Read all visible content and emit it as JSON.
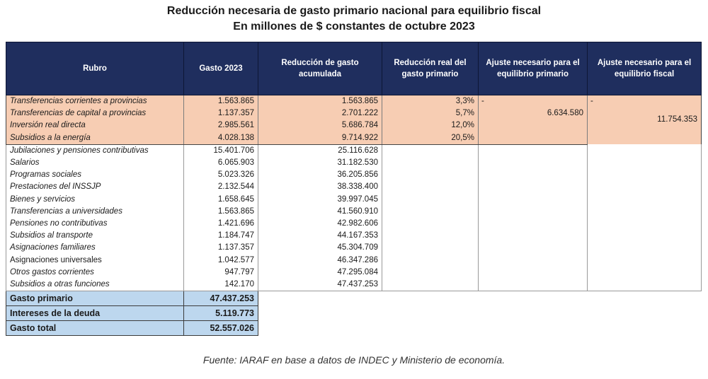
{
  "title_line1": "Reducción necesaria de gasto primario nacional para equilibrio fiscal",
  "title_line2": "En millones de $ constantes de octubre 2023",
  "headers": {
    "rubro": "Rubro",
    "gasto": "Gasto 2023",
    "reduccion_acum": "Reducción de gasto acumulada",
    "reduccion_real": "Reducción real del gasto primario",
    "ajuste_primario": "Ajuste necesario para el equilibrio primario",
    "ajuste_fiscal": "Ajuste necesario para el equilibrio fiscal"
  },
  "highlighted_rows": [
    {
      "rubro": "Transferencias corrientes a provincias",
      "gasto": "1.563.865",
      "acumulada": "1.563.865",
      "real": "3,3%"
    },
    {
      "rubro": "Transferencias de capital a provincias",
      "gasto": "1.137.357",
      "acumulada": "2.701.222",
      "real": "5,7%"
    },
    {
      "rubro": "Inversión real directa",
      "gasto": "2.985.561",
      "acumulada": "5.686.784",
      "real": "12,0%"
    },
    {
      "rubro": "Subsidios a la energía",
      "gasto": "4.028.138",
      "acumulada": "9.714.922",
      "real": "20,5%"
    }
  ],
  "ajuste_primario_value": "6.634.580",
  "ajuste_fiscal_value": "11.754.353",
  "ajuste_dash": "-",
  "rows": [
    {
      "rubro": "Jubilaciones y pensiones contributivas",
      "gasto": "15.401.706",
      "acumulada": "25.116.628"
    },
    {
      "rubro": "Salarios",
      "gasto": "6.065.903",
      "acumulada": "31.182.530"
    },
    {
      "rubro": "Programas sociales",
      "gasto": "5.023.326",
      "acumulada": "36.205.856"
    },
    {
      "rubro": "Prestaciones del INSSJP",
      "gasto": "2.132.544",
      "acumulada": "38.338.400"
    },
    {
      "rubro": "Bienes y servicios",
      "gasto": "1.658.645",
      "acumulada": "39.997.045"
    },
    {
      "rubro": "Transferencias a universidades",
      "gasto": "1.563.865",
      "acumulada": "41.560.910"
    },
    {
      "rubro": "Pensiones no contributivas",
      "gasto": "1.421.696",
      "acumulada": "42.982.606"
    },
    {
      "rubro": "Subsidios al transporte",
      "gasto": "1.184.747",
      "acumulada": "44.167.353"
    },
    {
      "rubro": "Asignaciones familiares",
      "gasto": "1.137.357",
      "acumulada": "45.304.709"
    },
    {
      "rubro": "Asignaciones universales",
      "gasto": "1.042.577",
      "acumulada": "46.347.286"
    },
    {
      "rubro": "Otros gastos corrientes",
      "gasto": "947.797",
      "acumulada": "47.295.084"
    },
    {
      "rubro": "Subsidios a otras funciones",
      "gasto": "142.170",
      "acumulada": "47.437.253"
    }
  ],
  "totals": [
    {
      "rubro": "Gasto primario",
      "gasto": "47.437.253"
    },
    {
      "rubro": "Intereses de la deuda",
      "gasto": "5.119.773"
    },
    {
      "rubro": "Gasto total",
      "gasto": "52.557.026"
    }
  ],
  "source": "Fuente: IARAF en base a datos de INDEC y Ministerio de economía."
}
